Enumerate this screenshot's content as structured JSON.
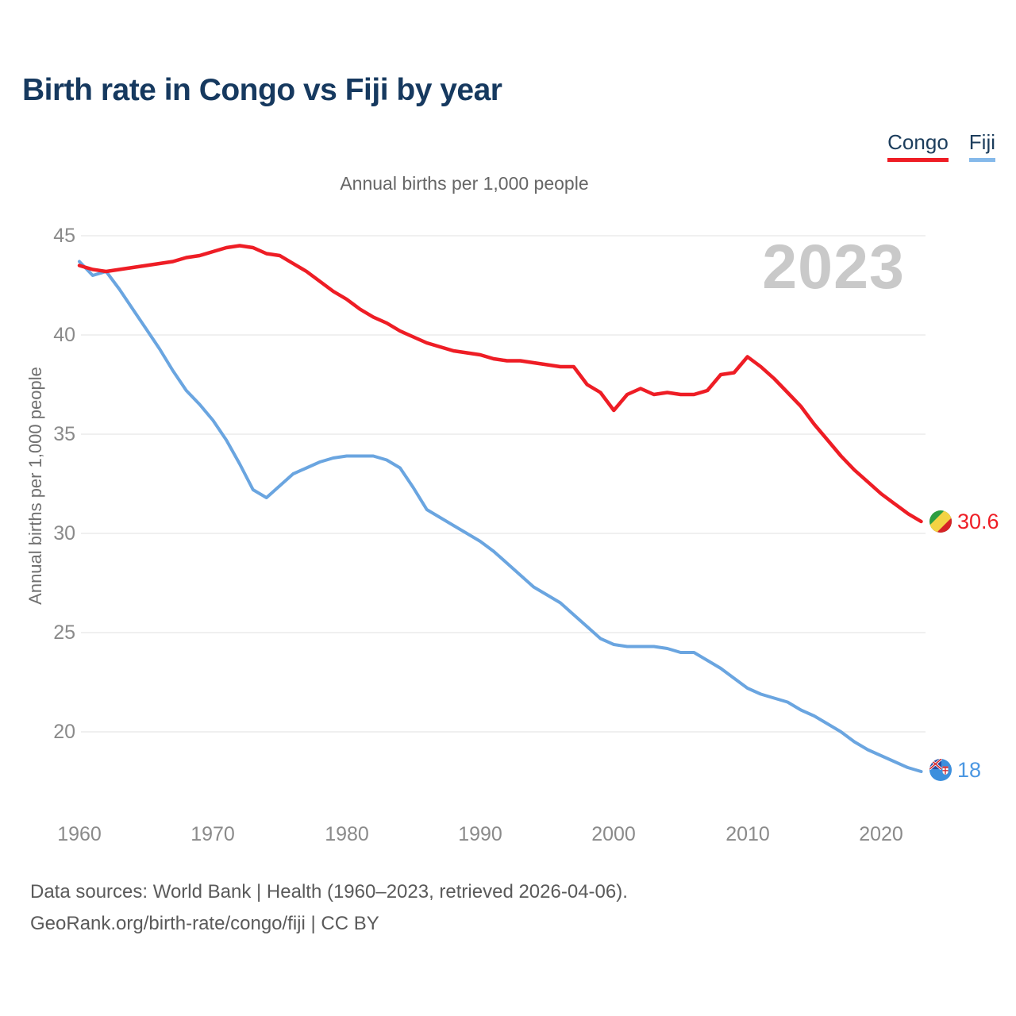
{
  "header": {
    "title": "Birth rate in Congo vs Fiji by year",
    "legend": [
      {
        "label": "Congo",
        "underline_color": "#ee1d25"
      },
      {
        "label": "Fiji",
        "underline_color": "#85b9ea"
      }
    ]
  },
  "chart_data": {
    "type": "line",
    "title": "Birth rate in Congo vs Fiji by year",
    "subtitle": "Annual births per 1,000 people",
    "ylabel": "Annual births per 1,000 people",
    "watermark": "2023",
    "grid": true,
    "legend_position": "top-right",
    "ylim": [
      17.5,
      45.5
    ],
    "xlim": [
      1960,
      2023
    ],
    "y_ticks": [
      45,
      40,
      35,
      30,
      25,
      20
    ],
    "x_ticks": [
      1960,
      1970,
      1980,
      1990,
      2000,
      2010,
      2020
    ],
    "x": [
      1960,
      1961,
      1962,
      1963,
      1964,
      1965,
      1966,
      1967,
      1968,
      1969,
      1970,
      1971,
      1972,
      1973,
      1974,
      1975,
      1976,
      1977,
      1978,
      1979,
      1980,
      1981,
      1982,
      1983,
      1984,
      1985,
      1986,
      1987,
      1988,
      1989,
      1990,
      1991,
      1992,
      1993,
      1994,
      1995,
      1996,
      1997,
      1998,
      1999,
      2000,
      2001,
      2002,
      2003,
      2004,
      2005,
      2006,
      2007,
      2008,
      2009,
      2010,
      2011,
      2012,
      2013,
      2014,
      2015,
      2016,
      2017,
      2018,
      2019,
      2020,
      2021,
      2022,
      2023
    ],
    "series": [
      {
        "name": "Congo",
        "color": "#ee1d25",
        "width": 4.5,
        "end_label": "30.6",
        "values": [
          43.5,
          43.3,
          43.2,
          43.3,
          43.4,
          43.5,
          43.6,
          43.7,
          43.9,
          44.0,
          44.2,
          44.4,
          44.5,
          44.4,
          44.1,
          44.0,
          43.6,
          43.2,
          42.7,
          42.2,
          41.8,
          41.3,
          40.9,
          40.6,
          40.2,
          39.9,
          39.6,
          39.4,
          39.2,
          39.1,
          39.0,
          38.8,
          38.7,
          38.7,
          38.6,
          38.5,
          38.4,
          38.4,
          37.5,
          37.1,
          36.2,
          37.0,
          37.3,
          37.0,
          37.1,
          37.0,
          37.0,
          37.2,
          38.0,
          38.1,
          38.9,
          38.4,
          37.8,
          37.1,
          36.4,
          35.5,
          34.7,
          33.9,
          33.2,
          32.6,
          32.0,
          31.5,
          31.0,
          30.6
        ]
      },
      {
        "name": "Fiji",
        "color": "#6aa5e0",
        "width": 4,
        "end_label": "18",
        "values": [
          43.7,
          43.0,
          43.2,
          42.3,
          41.3,
          40.3,
          39.3,
          38.2,
          37.2,
          36.5,
          35.7,
          34.7,
          33.5,
          32.2,
          31.8,
          32.4,
          33.0,
          33.3,
          33.6,
          33.8,
          33.9,
          33.9,
          33.9,
          33.7,
          33.3,
          32.3,
          31.2,
          30.8,
          30.4,
          30.0,
          29.6,
          29.1,
          28.5,
          27.9,
          27.3,
          26.9,
          26.5,
          25.9,
          25.3,
          24.7,
          24.4,
          24.3,
          24.3,
          24.3,
          24.2,
          24.0,
          24.0,
          23.6,
          23.2,
          22.7,
          22.2,
          21.9,
          21.7,
          21.5,
          21.1,
          20.8,
          20.4,
          20.0,
          19.5,
          19.1,
          18.8,
          18.5,
          18.2,
          18.0
        ]
      }
    ]
  },
  "footer": {
    "line1": "Data sources: World Bank | Health (1960–2023, retrieved 2026-04-06).",
    "line2": "GeoRank.org/birth-rate/congo/fiji | CC BY"
  }
}
